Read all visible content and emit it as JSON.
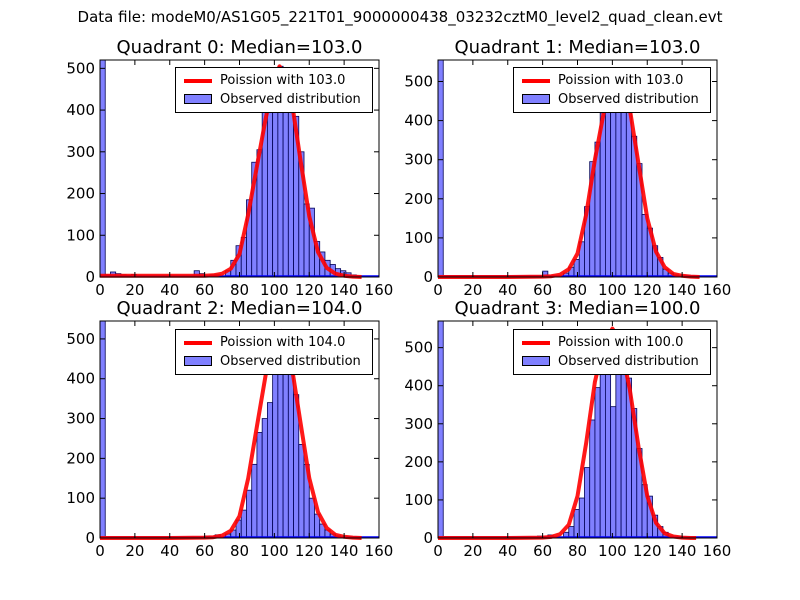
{
  "suptitle": "Data file: modeM0/AS1G05_221T01_9000000438_03232cztM0_level2_quad_clean.evt",
  "colors": {
    "bar_fill": "#8080ff",
    "bar_edge": "#000055",
    "line": "#ff0000",
    "zeroline": "#0000ff"
  },
  "chart_data": [
    {
      "type": "bar",
      "title": "Quadrant 0: Median=103.0",
      "xlim": [
        0,
        160
      ],
      "ylim": [
        0,
        520
      ],
      "xticks": [
        "0",
        "20",
        "40",
        "60",
        "80",
        "100",
        "120",
        "140",
        "160"
      ],
      "yticks": [
        "0",
        "100",
        "200",
        "300",
        "400",
        "500"
      ],
      "bins": [
        [
          0,
          3,
          520
        ],
        [
          3,
          6,
          5
        ],
        [
          6,
          9,
          12
        ],
        [
          9,
          12,
          8
        ],
        [
          12,
          15,
          5
        ],
        [
          15,
          18,
          4
        ],
        [
          18,
          21,
          6
        ],
        [
          21,
          24,
          3
        ],
        [
          24,
          27,
          2
        ],
        [
          27,
          30,
          1
        ],
        [
          54,
          57,
          15
        ],
        [
          57,
          60,
          8
        ],
        [
          63,
          66,
          5
        ],
        [
          66,
          69,
          5
        ],
        [
          72,
          75,
          15
        ],
        [
          75,
          78,
          40
        ],
        [
          78,
          81,
          75
        ],
        [
          81,
          84,
          95
        ],
        [
          84,
          87,
          185
        ],
        [
          87,
          90,
          275
        ],
        [
          90,
          93,
          305
        ],
        [
          93,
          96,
          415
        ],
        [
          96,
          99,
          470
        ],
        [
          99,
          102,
          480
        ],
        [
          102,
          105,
          505
        ],
        [
          105,
          108,
          475
        ],
        [
          108,
          111,
          395
        ],
        [
          111,
          114,
          385
        ],
        [
          114,
          117,
          300
        ],
        [
          117,
          120,
          175
        ],
        [
          120,
          123,
          165
        ],
        [
          123,
          126,
          85
        ],
        [
          126,
          129,
          60
        ],
        [
          129,
          132,
          40
        ],
        [
          132,
          135,
          30
        ],
        [
          135,
          138,
          20
        ],
        [
          138,
          141,
          15
        ],
        [
          141,
          144,
          10
        ],
        [
          144,
          147,
          5
        ]
      ],
      "series": [
        {
          "name": "Poission with 103.0",
          "x": [
            0,
            40,
            60,
            65,
            70,
            75,
            80,
            85,
            90,
            95,
            100,
            103,
            106,
            110,
            115,
            120,
            125,
            130,
            135,
            140,
            145,
            150
          ],
          "y": [
            3,
            3,
            3,
            4,
            8,
            20,
            55,
            150,
            265,
            380,
            475,
            505,
            480,
            420,
            280,
            145,
            60,
            22,
            8,
            3,
            1,
            0
          ]
        }
      ],
      "legend": {
        "position": "top-right",
        "line_label": "Poission with 103.0",
        "bar_label": "Observed distribution"
      }
    },
    {
      "type": "bar",
      "title": "Quadrant 1: Median=103.0",
      "xlim": [
        0,
        160
      ],
      "ylim": [
        0,
        555
      ],
      "xticks": [
        "0",
        "20",
        "40",
        "60",
        "80",
        "100",
        "120",
        "140",
        "160"
      ],
      "yticks": [
        "0",
        "100",
        "200",
        "300",
        "400",
        "500"
      ],
      "bins": [
        [
          0,
          3,
          555
        ],
        [
          3,
          6,
          2
        ],
        [
          60,
          63,
          15
        ],
        [
          72,
          75,
          10
        ],
        [
          75,
          78,
          25
        ],
        [
          78,
          81,
          45
        ],
        [
          81,
          84,
          90
        ],
        [
          84,
          87,
          180
        ],
        [
          87,
          90,
          295
        ],
        [
          90,
          93,
          345
        ],
        [
          93,
          96,
          420
        ],
        [
          96,
          99,
          460
        ],
        [
          99,
          102,
          500
        ],
        [
          102,
          105,
          520
        ],
        [
          105,
          108,
          490
        ],
        [
          108,
          111,
          450
        ],
        [
          111,
          114,
          360
        ],
        [
          114,
          117,
          290
        ],
        [
          117,
          120,
          160
        ],
        [
          120,
          123,
          125
        ],
        [
          123,
          126,
          80
        ],
        [
          126,
          129,
          50
        ],
        [
          129,
          132,
          20
        ],
        [
          132,
          135,
          10
        ],
        [
          135,
          138,
          5
        ]
      ],
      "series": [
        {
          "name": "Poission with 103.0",
          "x": [
            0,
            40,
            60,
            65,
            70,
            75,
            80,
            85,
            90,
            95,
            100,
            103,
            106,
            110,
            115,
            120,
            125,
            130,
            135,
            140,
            145,
            150
          ],
          "y": [
            0,
            0,
            1,
            2,
            6,
            20,
            60,
            160,
            300,
            420,
            505,
            530,
            500,
            430,
            290,
            150,
            65,
            25,
            8,
            3,
            1,
            0
          ]
        }
      ],
      "legend": {
        "position": "top-right",
        "line_label": "Poission with 103.0",
        "bar_label": "Observed distribution"
      }
    },
    {
      "type": "bar",
      "title": "Quadrant 2: Median=104.0",
      "xlim": [
        0,
        160
      ],
      "ylim": [
        0,
        545
      ],
      "xticks": [
        "0",
        "20",
        "40",
        "60",
        "80",
        "100",
        "120",
        "140",
        "160"
      ],
      "yticks": [
        "0",
        "100",
        "200",
        "300",
        "400",
        "500"
      ],
      "bins": [
        [
          0,
          3,
          545
        ],
        [
          3,
          6,
          2
        ],
        [
          60,
          63,
          5
        ],
        [
          66,
          69,
          8
        ],
        [
          72,
          75,
          10
        ],
        [
          75,
          78,
          20
        ],
        [
          78,
          81,
          45
        ],
        [
          81,
          84,
          70
        ],
        [
          84,
          87,
          120
        ],
        [
          87,
          90,
          185
        ],
        [
          90,
          93,
          265
        ],
        [
          93,
          96,
          300
        ],
        [
          96,
          99,
          340
        ],
        [
          99,
          102,
          420
        ],
        [
          102,
          105,
          510
        ],
        [
          105,
          108,
          480
        ],
        [
          108,
          111,
          440
        ],
        [
          111,
          114,
          360
        ],
        [
          114,
          117,
          235
        ],
        [
          117,
          120,
          185
        ],
        [
          120,
          123,
          100
        ],
        [
          123,
          126,
          60
        ],
        [
          126,
          129,
          35
        ],
        [
          129,
          132,
          20
        ],
        [
          132,
          135,
          10
        ],
        [
          135,
          138,
          5
        ]
      ],
      "series": [
        {
          "name": "Poission with 104.0",
          "x": [
            0,
            40,
            60,
            65,
            70,
            75,
            80,
            85,
            90,
            95,
            100,
            104,
            107,
            110,
            115,
            120,
            125,
            130,
            135,
            140,
            145,
            150
          ],
          "y": [
            0,
            0,
            1,
            2,
            6,
            18,
            55,
            150,
            280,
            410,
            500,
            520,
            495,
            430,
            290,
            150,
            65,
            25,
            8,
            3,
            1,
            0
          ]
        }
      ],
      "legend": {
        "position": "top-right",
        "line_label": "Poission with 104.0",
        "bar_label": "Observed distribution"
      }
    },
    {
      "type": "bar",
      "title": "Quadrant 3: Median=100.0",
      "xlim": [
        0,
        160
      ],
      "ylim": [
        0,
        570
      ],
      "xticks": [
        "0",
        "20",
        "40",
        "60",
        "80",
        "100",
        "120",
        "140",
        "160"
      ],
      "yticks": [
        "0",
        "100",
        "200",
        "300",
        "400",
        "500"
      ],
      "bins": [
        [
          0,
          3,
          570
        ],
        [
          3,
          6,
          2
        ],
        [
          57,
          60,
          5
        ],
        [
          63,
          66,
          8
        ],
        [
          72,
          75,
          15
        ],
        [
          75,
          78,
          30
        ],
        [
          78,
          81,
          75
        ],
        [
          81,
          84,
          105
        ],
        [
          84,
          87,
          185
        ],
        [
          87,
          90,
          310
        ],
        [
          90,
          93,
          395
        ],
        [
          93,
          96,
          430
        ],
        [
          96,
          99,
          515
        ],
        [
          99,
          102,
          345
        ],
        [
          102,
          105,
          545
        ],
        [
          105,
          108,
          465
        ],
        [
          108,
          111,
          420
        ],
        [
          111,
          114,
          340
        ],
        [
          114,
          117,
          235
        ],
        [
          117,
          120,
          140
        ],
        [
          120,
          123,
          110
        ],
        [
          123,
          126,
          60
        ],
        [
          126,
          129,
          30
        ],
        [
          129,
          132,
          15
        ],
        [
          132,
          135,
          5
        ]
      ],
      "series": [
        {
          "name": "Poission with 100.0",
          "x": [
            0,
            40,
            60,
            65,
            70,
            75,
            80,
            85,
            90,
            95,
            100,
            103,
            106,
            110,
            115,
            120,
            125,
            130,
            135,
            140,
            145,
            148
          ],
          "y": [
            0,
            0,
            1,
            3,
            10,
            35,
            110,
            250,
            410,
            510,
            550,
            530,
            480,
            390,
            240,
            110,
            40,
            12,
            4,
            1,
            0,
            0
          ]
        }
      ],
      "legend": {
        "position": "top-right",
        "line_label": "Poission with 100.0",
        "bar_label": "Observed distribution"
      }
    }
  ]
}
